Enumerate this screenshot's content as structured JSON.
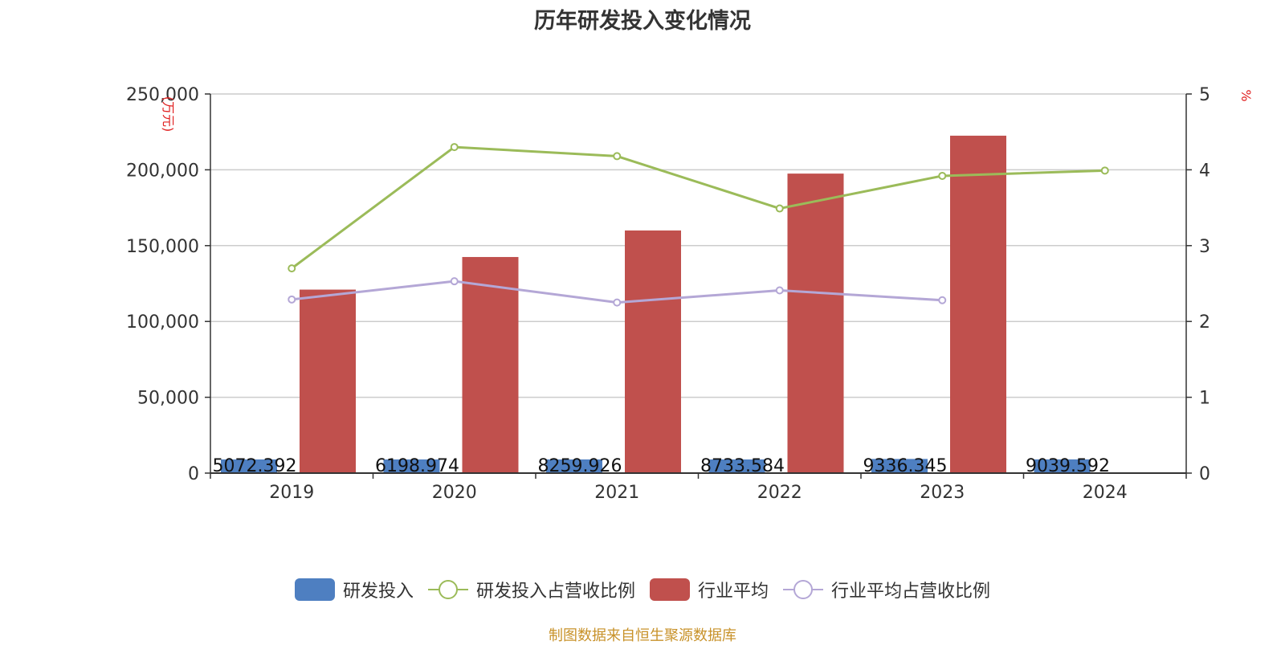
{
  "title": "历年研发投入变化情况",
  "source_note": "制图数据来自恒生聚源数据库",
  "colors": {
    "rd": "#4e7fc1",
    "rd_ratio": "#9bbb59",
    "industry": "#c0504d",
    "industry_ratio": "#b4a7d6",
    "grid": "#cccccc",
    "axis": "#333333",
    "unit": "#e02020"
  },
  "chart_data": {
    "type": "bar",
    "title": "历年研发投入变化情况",
    "categories": [
      "2019",
      "2020",
      "2021",
      "2022",
      "2023",
      "2024"
    ],
    "y_left": {
      "label": "万元",
      "min": 0,
      "max": 250000,
      "interval": 50000,
      "tick_labels": [
        "0",
        "50,000",
        "100,000",
        "150,000",
        "200,000",
        "250,000"
      ]
    },
    "y_right": {
      "label": "%",
      "min": 0,
      "max": 5,
      "interval": 1,
      "tick_labels": [
        "0",
        "1",
        "2",
        "3",
        "4",
        "5"
      ]
    },
    "series": [
      {
        "name": "研发投入",
        "type": "bar",
        "axis": "left",
        "values": [
          5072.392,
          6198.974,
          8259.926,
          8733.584,
          9336.345,
          9039.592
        ],
        "labels": [
          "5072.392",
          "6198.974",
          "8259.926",
          "8733.584",
          "9336.345",
          "9039.592"
        ]
      },
      {
        "name": "研发投入占营收比例",
        "type": "line",
        "axis": "right",
        "values": [
          2.7,
          4.3,
          4.18,
          3.49,
          3.92,
          3.99
        ]
      },
      {
        "name": "行业平均",
        "type": "bar",
        "axis": "left",
        "values": [
          121000,
          142500,
          160000,
          197500,
          222500,
          null
        ]
      },
      {
        "name": "行业平均占营收比例",
        "type": "line",
        "axis": "right",
        "values": [
          2.29,
          2.53,
          2.25,
          2.41,
          2.28,
          null
        ]
      }
    ],
    "grid": true,
    "legend_position": "bottom"
  }
}
